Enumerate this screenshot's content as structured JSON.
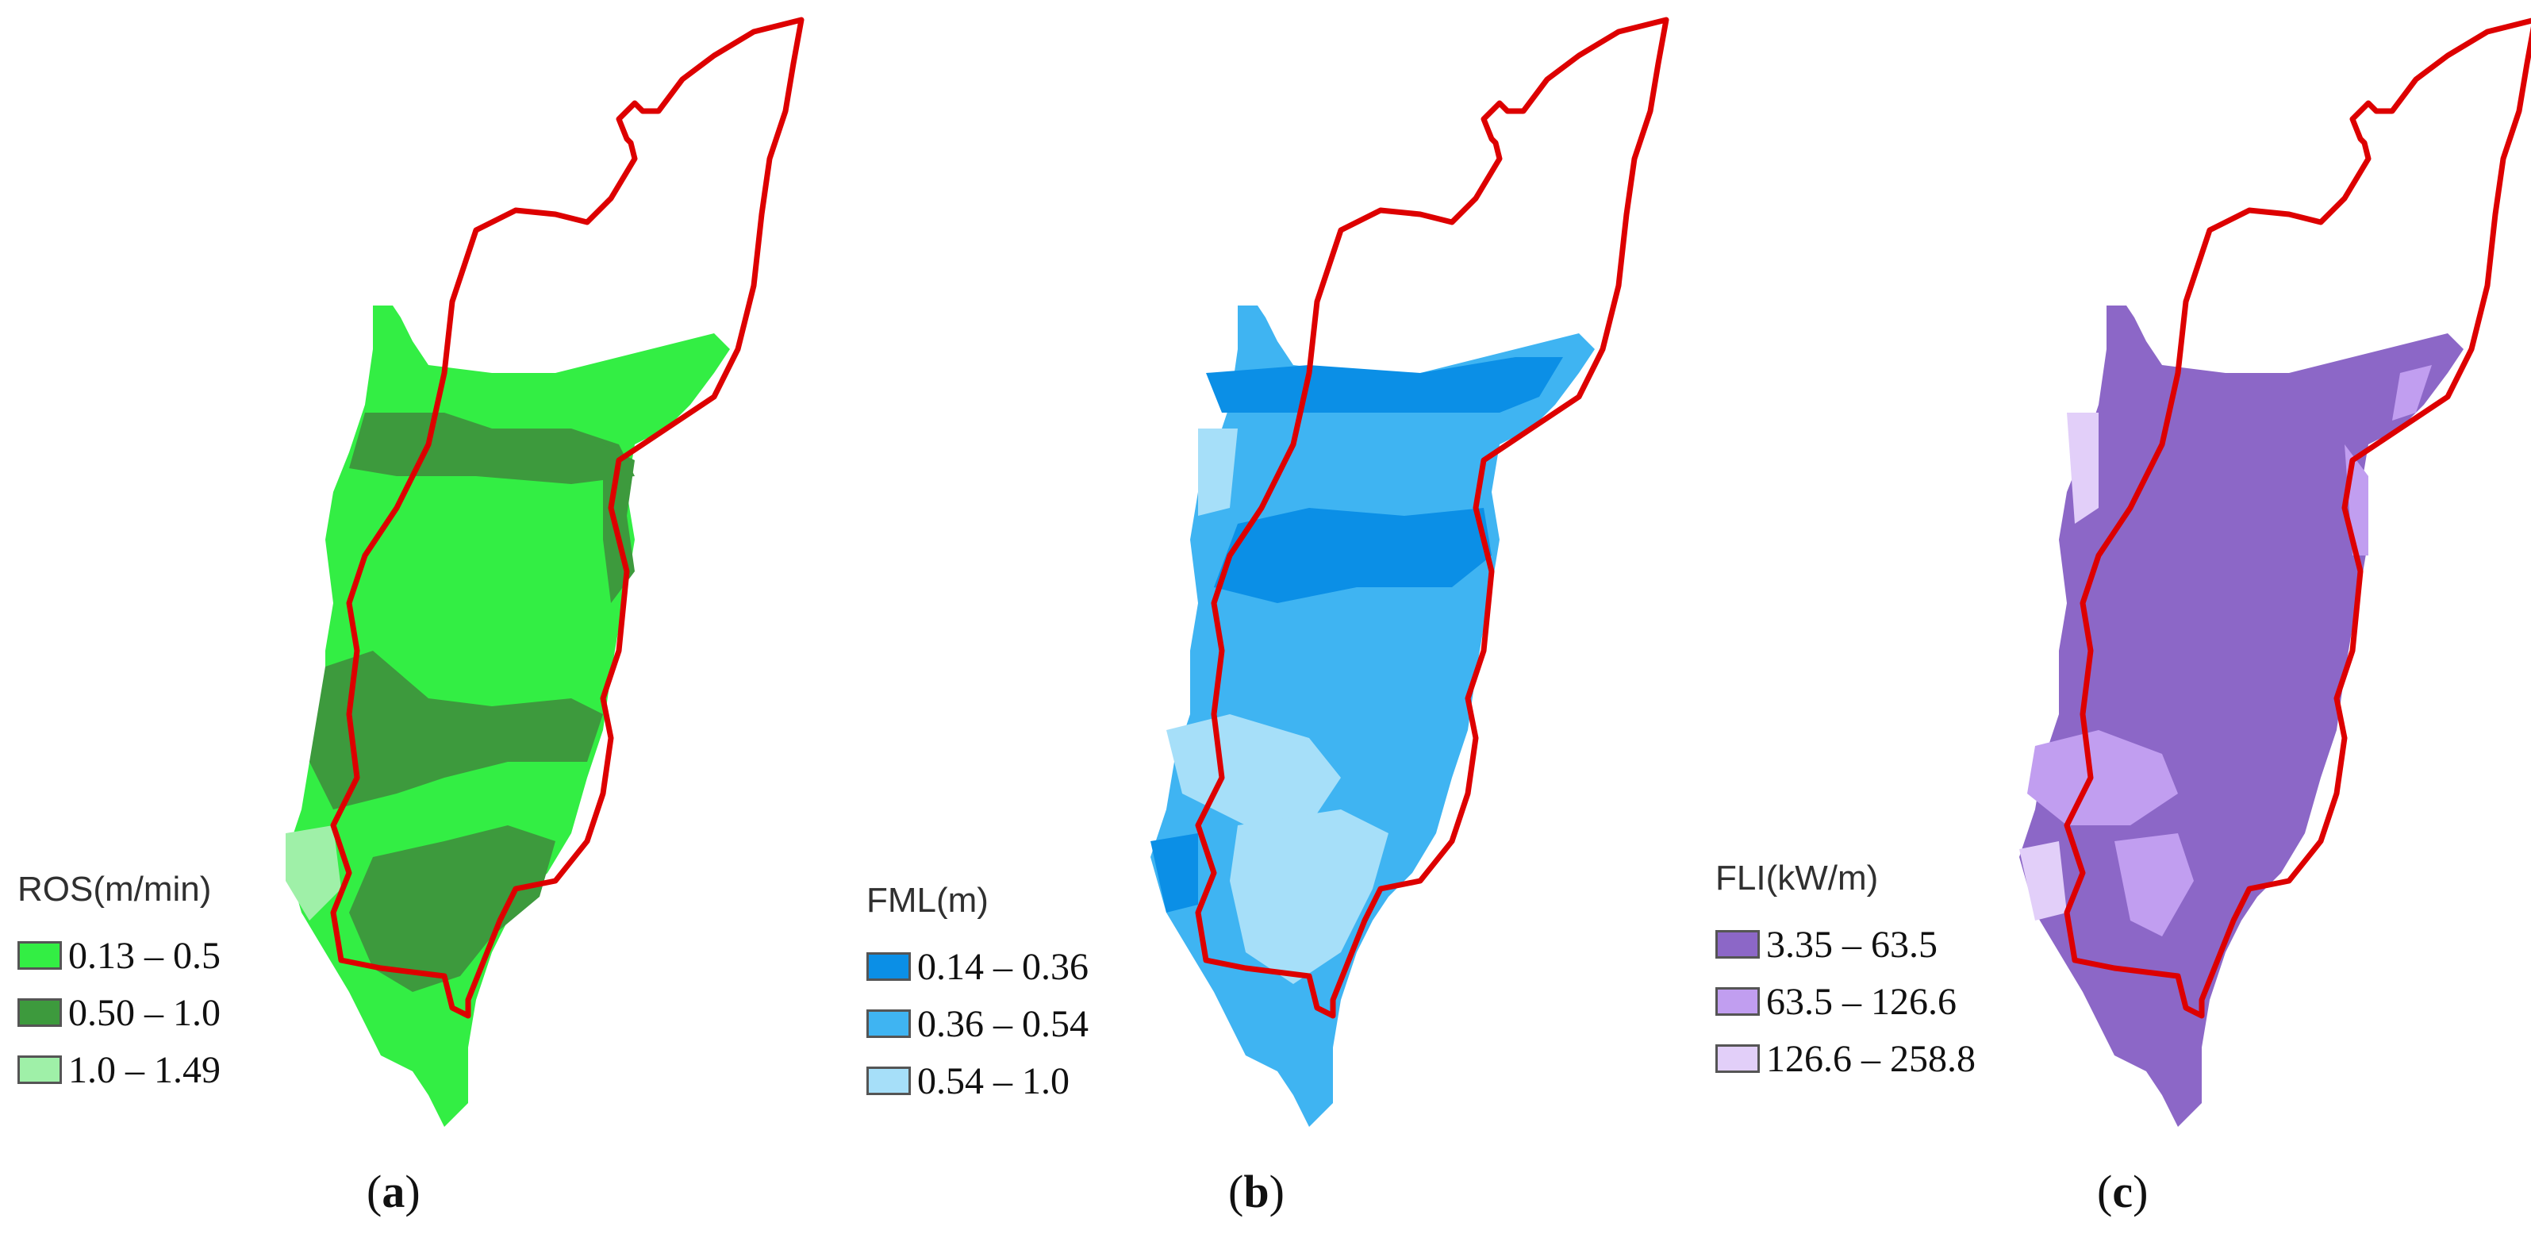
{
  "panels": [
    {
      "id": "a",
      "caption_letter": "a",
      "legend_title": "ROS(m/min)",
      "classes": [
        {
          "label": "0.13 – 0.5",
          "color": "#33ee44"
        },
        {
          "label": "0.50 – 1.0",
          "color": "#3d9a3d"
        },
        {
          "label": "1.0 – 1.49",
          "color": "#9ff0a8"
        }
      ]
    },
    {
      "id": "b",
      "caption_letter": "b",
      "legend_title": "FML(m)",
      "classes": [
        {
          "label": "0.14 – 0.36",
          "color": "#0b8fe6"
        },
        {
          "label": "0.36 – 0.54",
          "color": "#3fb4f2"
        },
        {
          "label": "0.54 – 1.0",
          "color": "#a6dff9"
        }
      ]
    },
    {
      "id": "c",
      "caption_letter": "c",
      "legend_title": "FLI(kW/m)",
      "classes": [
        {
          "label": "3.35 – 63.5",
          "color": "#8c67c7"
        },
        {
          "label": "63.5 – 126.6",
          "color": "#c19ef0"
        },
        {
          "label": "126.6 – 258.8",
          "color": "#e2cff9"
        }
      ]
    }
  ],
  "boundary_color": "#dd0000"
}
